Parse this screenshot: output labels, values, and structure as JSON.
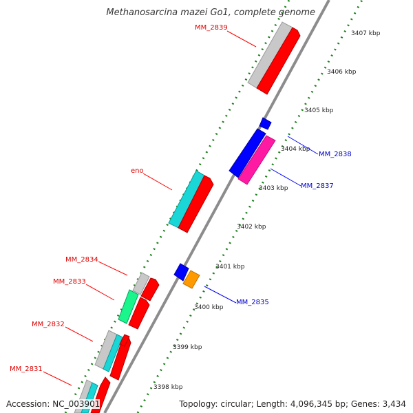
{
  "title": "Methanosarcina mazei Go1, complete genome",
  "accession": "Accession: NC_003901",
  "topology": "Topology: circular; Length: 4,096,345 bp; Genes: 3,434",
  "colors": {
    "backbone": "#8c8c8c",
    "tick": "#1a7f1a",
    "red": "#ff0000",
    "blue": "#0000ff",
    "magenta": "#ff1aa3",
    "cyan": "#1ad6d6",
    "green": "#1af58c",
    "orange": "#ff9900",
    "gray": "#c8c8c8",
    "red_label": "#dd0000",
    "blue_label": "#0000cc"
  },
  "kbp_labels": [
    "3407 kbp",
    "3406 kbp",
    "3405 kbp",
    "3404 kbp",
    "3403 kbp",
    "3402 kbp",
    "3401 kbp",
    "3400 kbp",
    "3399 kbp",
    "3398 kbp"
  ],
  "gene_labels": {
    "left": [
      "MM_2839",
      "eno",
      "MM_2834",
      "MM_2833",
      "MM_2832",
      "MM_2831"
    ],
    "right": [
      "MM_2838",
      "MM_2837",
      "MM_2835"
    ]
  }
}
